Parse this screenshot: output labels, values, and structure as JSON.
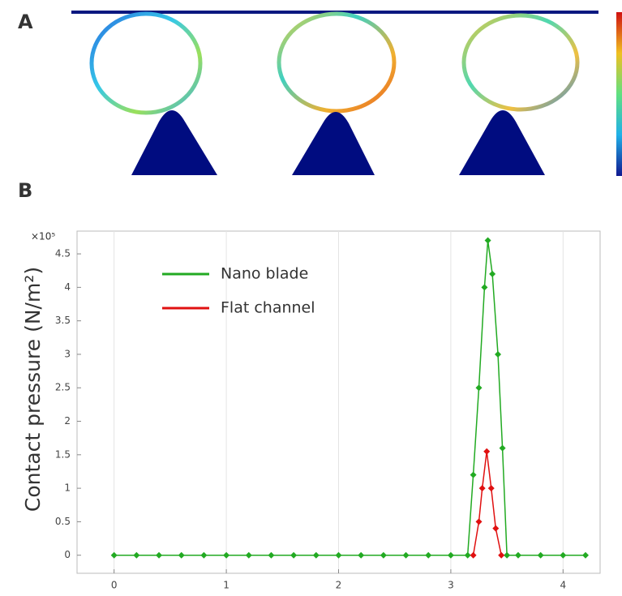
{
  "panels": {
    "a": "A",
    "b": "B"
  },
  "chart_data": {
    "type": "line",
    "y_label": "Contact pressure (N/m²)",
    "y_multiplier": "×10⁵",
    "xlim": [
      -0.33,
      4.33
    ],
    "ylim": [
      -0.27,
      4.84
    ],
    "xticks": [
      0,
      1,
      2,
      3,
      4
    ],
    "yticks": [
      0,
      0.5,
      1,
      1.5,
      2,
      2.5,
      3,
      3.5,
      4,
      4.5
    ],
    "grid": true,
    "legend": "upper left",
    "series": [
      {
        "name": "Nano blade",
        "color": "#22aa22",
        "x": [
          0,
          0.2,
          0.4,
          0.6,
          0.8,
          1,
          1.2,
          1.4,
          1.6,
          1.8,
          2,
          2.2,
          2.4,
          2.6,
          2.8,
          3,
          3.15,
          3.2,
          3.25,
          3.3,
          3.33,
          3.37,
          3.42,
          3.46,
          3.5,
          3.6,
          3.8,
          4,
          4.2
        ],
        "values": [
          0,
          0,
          0,
          0,
          0,
          0,
          0,
          0,
          0,
          0,
          0,
          0,
          0,
          0,
          0,
          0,
          0,
          1.2,
          2.5,
          4,
          4.7,
          4.2,
          3,
          1.6,
          0,
          0,
          0,
          0,
          0
        ]
      },
      {
        "name": "Flat channel",
        "color": "#e01010",
        "x": [
          3.2,
          3.25,
          3.28,
          3.32,
          3.36,
          3.4,
          3.45
        ],
        "values": [
          0,
          0.5,
          1,
          1.55,
          1,
          0.4,
          0
        ]
      }
    ]
  }
}
